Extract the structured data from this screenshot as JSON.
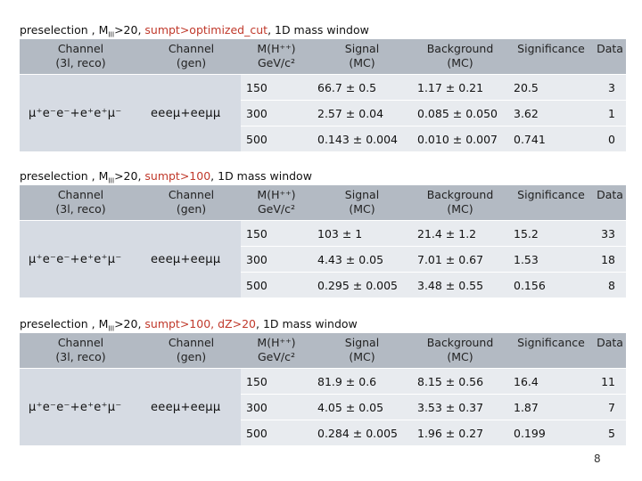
{
  "header_labels": {
    "channel_reco": "Channel\n(3l, reco)",
    "channel_gen": "Channel\n(gen)",
    "mass": "M(H⁺⁺)\nGeV/c²",
    "signal": "Signal\n(MC)",
    "background": "Background\n(MC)",
    "significance": "Significance",
    "data": "Data"
  },
  "channel_reco": "μ⁺e⁻e⁻+e⁺e⁺μ⁻",
  "channel_gen": "eeeμ+eeμμ",
  "sections": [
    {
      "caption": {
        "prefix": "preselection , M",
        "sub": "lll",
        "mid": ">20, ",
        "red": "sumpt>optimized_cut",
        "suffix": ", 1D mass window"
      },
      "rows": [
        {
          "mass": "150",
          "signal": "66.7 ± 0.5",
          "background": "1.17 ± 0.21",
          "significance": "20.5",
          "data": "3"
        },
        {
          "mass": "300",
          "signal": "2.57 ± 0.04",
          "background": "0.085 ± 0.050",
          "significance": "3.62",
          "data": "1"
        },
        {
          "mass": "500",
          "signal": "0.143 ± 0.004",
          "background": "0.010 ± 0.007",
          "significance": "0.741",
          "data": "0"
        }
      ]
    },
    {
      "caption": {
        "prefix": "preselection , M",
        "sub": "lll",
        "mid": ">20, ",
        "red": "sumpt>100",
        "suffix": ", 1D mass window"
      },
      "rows": [
        {
          "mass": "150",
          "signal": "103 ± 1",
          "background": "21.4 ± 1.2",
          "significance": "15.2",
          "data": "33"
        },
        {
          "mass": "300",
          "signal": "4.43 ± 0.05",
          "background": "7.01 ± 0.67",
          "significance": "1.53",
          "data": "18"
        },
        {
          "mass": "500",
          "signal": "0.295 ± 0.005",
          "background": "3.48 ± 0.55",
          "significance": "0.156",
          "data": "8"
        }
      ]
    },
    {
      "caption": {
        "prefix": "preselection , M",
        "sub": "lll",
        "mid": ">20, ",
        "red": "sumpt>100, dZ>20",
        "suffix": ", 1D mass window"
      },
      "rows": [
        {
          "mass": "150",
          "signal": "81.9 ± 0.6",
          "background": "8.15 ± 0.56",
          "significance": "16.4",
          "data": "11"
        },
        {
          "mass": "300",
          "signal": "4.05 ± 0.05",
          "background": "3.53 ± 0.37",
          "significance": "1.87",
          "data": "7"
        },
        {
          "mass": "500",
          "signal": "0.284 ± 0.005",
          "background": "1.96 ± 0.27",
          "significance": "0.199",
          "data": "5"
        }
      ]
    }
  ],
  "page_number": "8"
}
